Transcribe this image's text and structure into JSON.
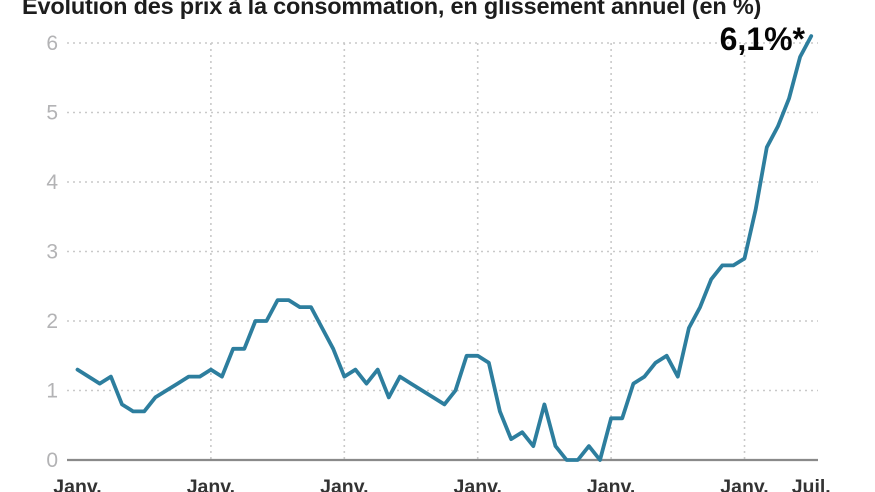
{
  "title": "Évolution des prix à la consommation, en glissement annuel (en %)",
  "annotation_label": "6,1%*",
  "colors": {
    "line": "#2d7e9e",
    "grid": "#c9c9c9",
    "zero_axis": "#8a8a8a",
    "y_tick_text": "#b3b3b5",
    "x_tick_text": "#333333",
    "title_text": "#1d1d1d",
    "annotation_text": "#050505"
  },
  "chart_data": {
    "type": "line",
    "title": "Évolution des prix à la consommation, en glissement annuel (en %)",
    "xlabel": "",
    "ylabel": "",
    "ylim": [
      0,
      6
    ],
    "y_ticks": [
      0,
      1,
      2,
      3,
      4,
      5,
      6
    ],
    "grid": "dotted, horizontal at each integer and vertical at each January tick",
    "legend_position": "none",
    "x_unit": "month",
    "x_ticks": [
      {
        "label": "Janv.",
        "month": 0,
        "gridline": false
      },
      {
        "label": "Janv.",
        "month": 12,
        "gridline": true
      },
      {
        "label": "Janv.",
        "month": 24,
        "gridline": true
      },
      {
        "label": "Janv.",
        "month": 36,
        "gridline": true
      },
      {
        "label": "Janv.",
        "month": 48,
        "gridline": true
      },
      {
        "label": "Janv.",
        "month": 60,
        "gridline": true
      },
      {
        "label": "Juil.",
        "month": 66,
        "gridline": false
      }
    ],
    "series": [
      {
        "name": "Prix à la consommation, glissement annuel (%)",
        "values": [
          1.3,
          1.2,
          1.1,
          1.2,
          0.8,
          0.7,
          0.7,
          0.9,
          1.0,
          1.1,
          1.2,
          1.2,
          1.3,
          1.2,
          1.6,
          1.6,
          2.0,
          2.0,
          2.3,
          2.3,
          2.2,
          2.2,
          1.9,
          1.6,
          1.2,
          1.3,
          1.1,
          1.3,
          0.9,
          1.2,
          1.1,
          1.0,
          0.9,
          0.8,
          1.0,
          1.5,
          1.5,
          1.4,
          0.7,
          0.3,
          0.4,
          0.2,
          0.8,
          0.2,
          0.0,
          0.0,
          0.2,
          0.0,
          0.6,
          0.6,
          1.1,
          1.2,
          1.4,
          1.5,
          1.2,
          1.9,
          2.2,
          2.6,
          2.8,
          2.8,
          2.9,
          3.6,
          4.5,
          4.8,
          5.2,
          5.8,
          6.1
        ]
      }
    ],
    "annotation": {
      "text": "6,1%*",
      "month": 66,
      "value": 6.1
    }
  }
}
